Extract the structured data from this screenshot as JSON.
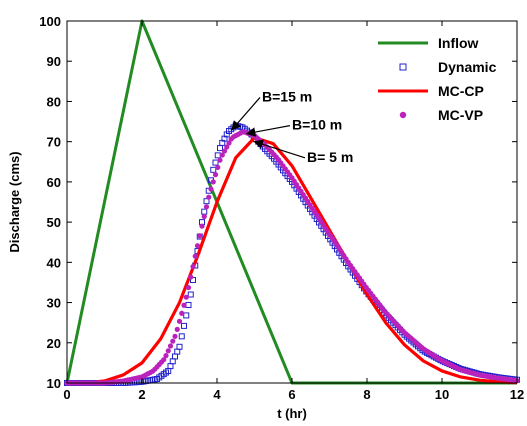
{
  "chart_data": {
    "type": "line",
    "title": "",
    "xlabel": "t (hr)",
    "ylabel": "Discharge (cms)",
    "xlim": [
      0,
      12
    ],
    "ylim": [
      10,
      100
    ],
    "xticks": [
      0,
      2,
      4,
      6,
      8,
      10,
      12
    ],
    "yticks": [
      10,
      20,
      30,
      40,
      50,
      60,
      70,
      80,
      90,
      100
    ],
    "grid": false,
    "legend_position": "top-right",
    "colors": {
      "inflow": "#228b22",
      "dynamic": "#2222cc",
      "mccp": "#ff0000",
      "mcvp": "#bb22bb"
    },
    "series": [
      {
        "name": "Inflow",
        "style": "line",
        "x": [
          0,
          2,
          6,
          12
        ],
        "y": [
          10,
          100,
          10,
          10
        ]
      },
      {
        "name": "Dynamic",
        "style": "square-markers",
        "x": [
          0,
          0.5,
          1,
          1.5,
          2,
          2.4,
          2.7,
          3.0,
          3.3,
          3.6,
          3.9,
          4.1,
          4.3,
          4.5,
          4.7,
          4.9,
          5.2,
          5.5,
          6,
          6.5,
          7,
          7.5,
          8,
          8.5,
          9,
          9.5,
          10,
          10.5,
          11,
          11.5,
          12
        ],
        "y": [
          10,
          10,
          10,
          10,
          10.3,
          11,
          13,
          19,
          32,
          50,
          63,
          69,
          72.5,
          74,
          73.5,
          72,
          69,
          66,
          60,
          53,
          46,
          39,
          32.5,
          27,
          22,
          18,
          15.5,
          13.5,
          12.2,
          11.4,
          10.8
        ]
      },
      {
        "name": "MC-CP",
        "style": "line",
        "x": [
          0,
          0.5,
          1,
          1.5,
          2,
          2.5,
          3,
          3.5,
          4,
          4.5,
          5,
          5.5,
          6,
          6.5,
          7,
          7.5,
          8,
          8.5,
          9,
          9.5,
          10,
          10.5,
          11,
          11.5,
          12
        ],
        "y": [
          10,
          10,
          10.5,
          12,
          15,
          21,
          30,
          42,
          55,
          66,
          71,
          69.5,
          64,
          56,
          48,
          40,
          32,
          25,
          19.5,
          15.5,
          13,
          11.5,
          10.7,
          10.3,
          10.1
        ]
      },
      {
        "name": "MC-VP",
        "style": "dot-markers",
        "x": [
          0,
          0.5,
          1,
          1.5,
          2,
          2.3,
          2.6,
          2.9,
          3.2,
          3.5,
          3.8,
          4.1,
          4.4,
          4.7,
          5.0,
          5.3,
          5.6,
          6,
          6.5,
          7,
          7.5,
          8,
          8.5,
          9,
          9.5,
          10,
          10.5,
          11,
          11.5,
          12
        ],
        "y": [
          10,
          10,
          10,
          10.5,
          11.5,
          13,
          16,
          22,
          32,
          45,
          57,
          66,
          71,
          72.5,
          71.5,
          69,
          66,
          61,
          54,
          47,
          40,
          33.5,
          27.5,
          22.5,
          18.5,
          15.5,
          13.3,
          12,
          11.2,
          10.6
        ]
      }
    ],
    "annotations": [
      {
        "text": "B=15 m",
        "x": 5.2,
        "y": 80,
        "point_x": 4.4,
        "point_y": 73
      },
      {
        "text": "B=10 m",
        "x": 6.0,
        "y": 73,
        "point_x": 4.8,
        "point_y": 72
      },
      {
        "text": "B= 5 m",
        "x": 6.4,
        "y": 65,
        "point_x": 5.0,
        "point_y": 70
      }
    ]
  }
}
